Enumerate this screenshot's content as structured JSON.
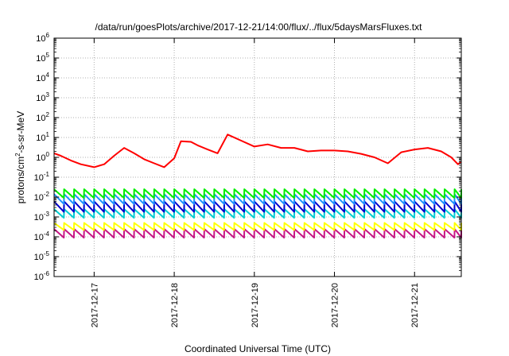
{
  "chart_data": {
    "type": "line",
    "title": "/data/run/goesPlots/archive/2017-12-21/14:00/flux/../flux/5daysMarsFluxes.txt",
    "xlabel": "Coordinated Universal Time (UTC)",
    "ylabel_parts": [
      "protons/cm",
      "2",
      "-s-sr-MeV"
    ],
    "y_scale": "log",
    "ylim": [
      1e-06,
      1000000.0
    ],
    "y_ticks": [
      {
        "base": "10",
        "exp": "-6"
      },
      {
        "base": "10",
        "exp": "-5"
      },
      {
        "base": "10",
        "exp": "-4"
      },
      {
        "base": "10",
        "exp": "-3"
      },
      {
        "base": "10",
        "exp": "-2"
      },
      {
        "base": "10",
        "exp": "-1"
      },
      {
        "base": "10",
        "exp": "0"
      },
      {
        "base": "10",
        "exp": "1"
      },
      {
        "base": "10",
        "exp": "2"
      },
      {
        "base": "10",
        "exp": "3"
      },
      {
        "base": "10",
        "exp": "4"
      },
      {
        "base": "10",
        "exp": "5"
      },
      {
        "base": "10",
        "exp": "6"
      }
    ],
    "xlim": [
      "2017-12-16 12:00",
      "2017-12-21 14:00"
    ],
    "x_ticks": [
      "2017-12-17",
      "2017-12-18",
      "2017-12-19",
      "2017-12-20",
      "2017-12-21"
    ],
    "grid": true,
    "legend": "none",
    "series": [
      {
        "color": "#ff0000",
        "x": [
          "2017-12-16 12:00",
          "2017-12-16 14:00",
          "2017-12-16 17:00",
          "2017-12-16 20:00",
          "2017-12-17 00:00",
          "2017-12-17 03:00",
          "2017-12-17 06:00",
          "2017-12-17 09:00",
          "2017-12-17 12:00",
          "2017-12-17 15:00",
          "2017-12-17 18:00",
          "2017-12-17 21:00",
          "2017-12-18 00:00",
          "2017-12-18 02:00",
          "2017-12-18 05:00",
          "2017-12-18 07:00",
          "2017-12-18 10:00",
          "2017-12-18 13:00",
          "2017-12-18 16:00",
          "2017-12-18 20:00",
          "2017-12-19 00:00",
          "2017-12-19 04:00",
          "2017-12-19 08:00",
          "2017-12-19 12:00",
          "2017-12-19 16:00",
          "2017-12-19 20:00",
          "2017-12-20 00:00",
          "2017-12-20 04:00",
          "2017-12-20 08:00",
          "2017-12-20 12:00",
          "2017-12-20 16:00",
          "2017-12-20 20:00",
          "2017-12-21 00:00",
          "2017-12-21 04:00",
          "2017-12-21 08:00",
          "2017-12-21 11:00",
          "2017-12-21 13:00",
          "2017-12-21 14:00"
        ],
        "y": [
          1.6,
          1.2,
          0.7,
          0.45,
          0.32,
          0.45,
          1.2,
          3.0,
          1.6,
          0.8,
          0.5,
          0.32,
          0.9,
          6.5,
          6.0,
          4.0,
          2.5,
          1.6,
          14,
          7,
          3.5,
          4.5,
          3.0,
          3.0,
          2.0,
          2.2,
          2.2,
          2.0,
          1.5,
          1.0,
          0.5,
          1.8,
          2.5,
          3.0,
          2.0,
          1.0,
          0.45,
          0.6
        ]
      },
      {
        "color": "#00ee00",
        "x_start": "2017-12-16 12:00",
        "period_hours": 3,
        "cycles": 41,
        "peak": 0.025,
        "trough": 0.009
      },
      {
        "color": "#1e90ff",
        "x_start": "2017-12-16 12:00",
        "period_hours": 3,
        "cycles": 41,
        "peak": 0.014,
        "trough": 0.0045
      },
      {
        "color": "#0000cd",
        "x_start": "2017-12-16 12:00",
        "period_hours": 3,
        "cycles": 41,
        "peak": 0.006,
        "trough": 0.0018
      },
      {
        "color": "#00ced1",
        "x_start": "2017-12-16 12:00",
        "period_hours": 3,
        "cycles": 41,
        "peak": 0.0025,
        "trough": 0.0009
      },
      {
        "color": "#ffff00",
        "x_start": "2017-12-16 12:00",
        "period_hours": 3,
        "cycles": 41,
        "peak": 0.0005,
        "trough": 0.00022
      },
      {
        "color": "#c71585",
        "x_start": "2017-12-16 12:00",
        "period_hours": 3,
        "cycles": 41,
        "peak": 0.00025,
        "trough": 9e-05
      }
    ]
  }
}
